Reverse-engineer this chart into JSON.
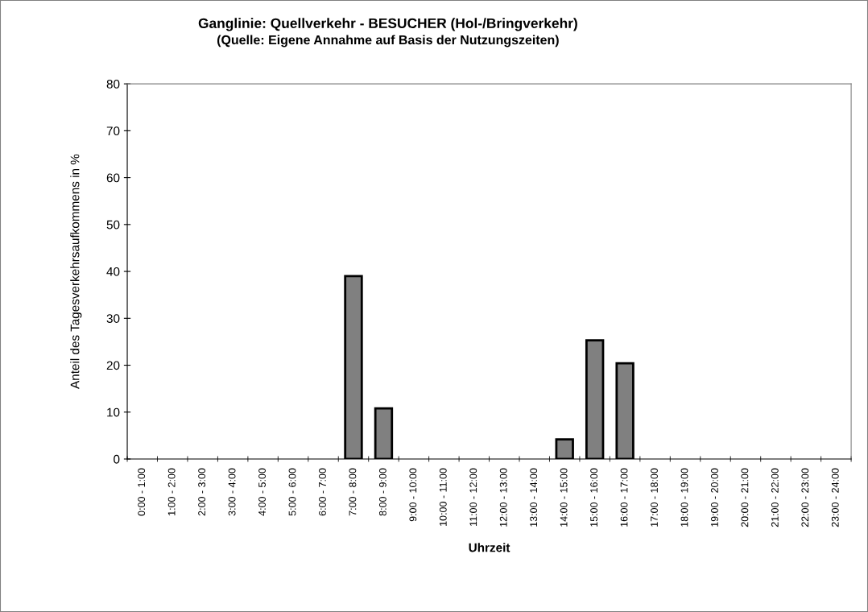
{
  "chart_data": {
    "type": "bar",
    "title": "Ganglinie: Quellverkehr - BESUCHER (Hol-/Bringverkehr)",
    "subtitle": "(Quelle: Eigene Annahme auf Basis der Nutzungszeiten)",
    "xlabel": "Uhrzeit",
    "ylabel": "Anteil des Tagesverkehrsaufkommens in %",
    "categories": [
      "0:00 - 1:00",
      "1:00 - 2:00",
      "2:00 - 3:00",
      "3:00 - 4:00",
      "4:00 - 5:00",
      "5:00 - 6:00",
      "6:00 - 7:00",
      "7:00 - 8:00",
      "8:00 - 9:00",
      "9:00 - 10:00",
      "10:00 - 11:00",
      "11:00 - 12:00",
      "12:00 - 13:00",
      "13:00 - 14:00",
      "14:00 - 15:00",
      "15:00 - 16:00",
      "16:00 - 17:00",
      "17:00 - 18:00",
      "18:00 - 19:00",
      "19:00 - 20:00",
      "20:00 - 21:00",
      "21:00 - 22:00",
      "22:00 - 23:00",
      "23:00 - 24:00"
    ],
    "values": [
      0,
      0,
      0,
      0,
      0,
      0,
      0,
      39,
      10.8,
      0,
      0,
      0,
      0,
      0,
      4.2,
      25.3,
      20.4,
      0,
      0,
      0,
      0,
      0,
      0,
      0
    ],
    "color": "#808080",
    "ylim": [
      0,
      80
    ],
    "yticks": [
      0,
      10,
      20,
      30,
      40,
      50,
      60,
      70,
      80
    ],
    "grid": false,
    "legend": false
  }
}
